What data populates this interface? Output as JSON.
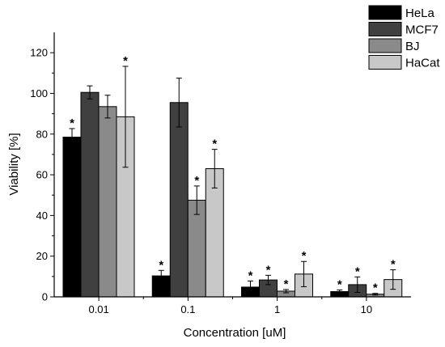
{
  "chart_data": {
    "type": "bar",
    "xlabel": "Concentration [uM]",
    "ylabel": "Viability [%]",
    "categories": [
      "0.01",
      "0.1",
      "1",
      "10"
    ],
    "ylim": [
      0,
      130
    ],
    "yticks": [
      0,
      20,
      40,
      60,
      80,
      100,
      120
    ],
    "legend_position": "top-right",
    "significance_marker": "*",
    "series": [
      {
        "name": "HeLa",
        "color": "#000000",
        "values": [
          78.5,
          10.3,
          4.8,
          2.6
        ],
        "errors": [
          4.2,
          2.7,
          3.0,
          0.8
        ],
        "significant": [
          true,
          true,
          true,
          true
        ]
      },
      {
        "name": "MCF7",
        "color": "#404040",
        "values": [
          100.5,
          95.5,
          8.3,
          6.0
        ],
        "errors": [
          3.2,
          12.0,
          2.3,
          3.8
        ],
        "significant": [
          false,
          false,
          true,
          true
        ]
      },
      {
        "name": "BJ",
        "color": "#8a8a8a",
        "values": [
          93.5,
          47.5,
          2.8,
          1.3
        ],
        "errors": [
          5.6,
          7.0,
          0.8,
          0.4
        ],
        "significant": [
          false,
          true,
          true,
          true
        ]
      },
      {
        "name": "HaCat",
        "color": "#c8c8c8",
        "values": [
          88.5,
          63.0,
          11.2,
          8.5
        ],
        "errors": [
          24.8,
          9.5,
          6.2,
          4.8
        ],
        "significant": [
          true,
          true,
          true,
          true
        ]
      }
    ]
  }
}
